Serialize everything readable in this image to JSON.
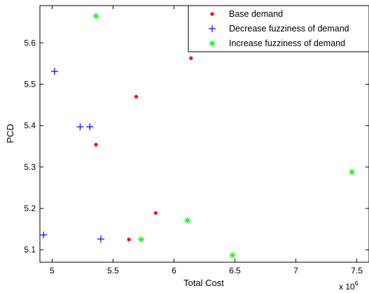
{
  "chart_data": {
    "type": "scatter",
    "xlabel": "Total Cost",
    "ylabel": "PCD",
    "x_exponent_label": "x 10",
    "x_exponent_power": "6",
    "xlim": [
      4.9,
      7.6
    ],
    "ylim": [
      5.07,
      5.69
    ],
    "xticks": [
      5,
      5.5,
      6,
      6.5,
      7,
      7.5
    ],
    "yticks": [
      5.1,
      5.2,
      5.3,
      5.4,
      5.5,
      5.6
    ],
    "legend_position": "top-right",
    "series": [
      {
        "name": "Base demand",
        "marker": "dot",
        "color": "#ff0000",
        "points": [
          [
            5.36,
            5.354
          ],
          [
            5.63,
            5.125
          ],
          [
            5.69,
            5.47
          ],
          [
            5.85,
            5.189
          ],
          [
            6.14,
            5.563
          ]
        ]
      },
      {
        "name": "Decrease fuzziness of demand",
        "marker": "plus",
        "color": "#0000ff",
        "points": [
          [
            4.93,
            5.136
          ],
          [
            5.02,
            5.531
          ],
          [
            5.23,
            5.397
          ],
          [
            5.31,
            5.397
          ],
          [
            5.4,
            5.126
          ]
        ]
      },
      {
        "name": "Increase fuzziness of demand",
        "marker": "star",
        "color": "#00ff00",
        "points": [
          [
            5.36,
            5.665
          ],
          [
            5.73,
            5.125
          ],
          [
            6.11,
            5.171
          ],
          [
            6.48,
            5.087
          ],
          [
            7.46,
            5.288
          ]
        ]
      }
    ]
  }
}
